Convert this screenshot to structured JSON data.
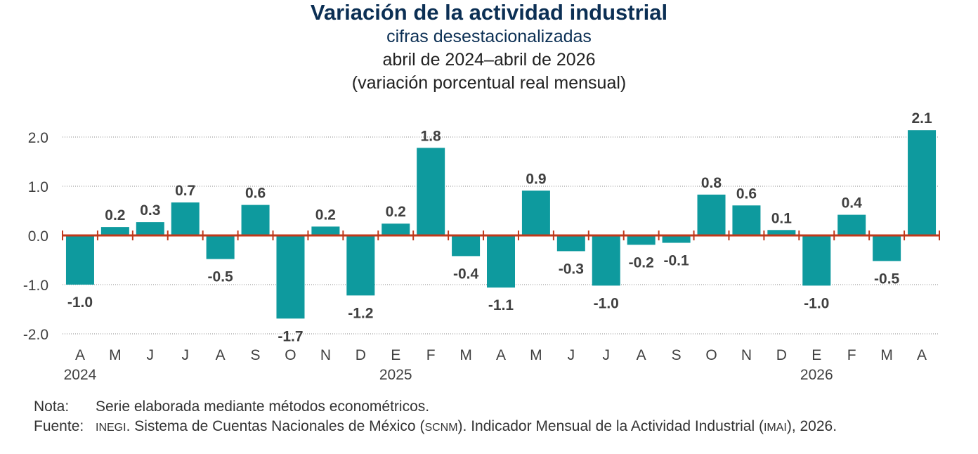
{
  "header": {
    "title": "Variación de la actividad industrial",
    "subtitle": "cifras desestacionalizadas",
    "period": "abril de 2024–abril de 2026",
    "units": "(variación porcentual real mensual)"
  },
  "colors": {
    "bar": "#0e9a9e",
    "zero_line": "#c0391b",
    "title": "#0b2f54",
    "grid": "#888888",
    "text": "#404040"
  },
  "chart_data": {
    "type": "bar",
    "title": "Variación de la actividad industrial",
    "subtitle": "cifras desestacionalizadas",
    "ylabel": "",
    "xlabel": "",
    "ylim": [
      -2.0,
      2.0
    ],
    "yticks": [
      "2.0",
      "1.0",
      "0.0",
      "-1.0",
      "-2.0"
    ],
    "ytick_values": [
      2.0,
      1.0,
      0.0,
      -1.0,
      -2.0
    ],
    "grid": "horizontal dotted",
    "categories": [
      "A",
      "M",
      "J",
      "J",
      "A",
      "S",
      "O",
      "N",
      "D",
      "E",
      "F",
      "M",
      "A",
      "M",
      "J",
      "J",
      "A",
      "S",
      "O",
      "N",
      "D",
      "E",
      "F",
      "M",
      "A"
    ],
    "values": [
      -1.0,
      0.17,
      0.27,
      0.67,
      -0.48,
      0.62,
      -1.69,
      0.18,
      -1.22,
      0.24,
      1.78,
      -0.42,
      -1.06,
      0.91,
      -0.32,
      -1.02,
      -0.19,
      -0.15,
      0.83,
      0.61,
      0.11,
      -1.02,
      0.42,
      -0.52,
      2.14
    ],
    "labels": [
      "-1.0",
      "0.2",
      "0.3",
      "0.7",
      "-0.5",
      "0.6",
      "-1.7",
      "0.2",
      "-1.2",
      "0.2",
      "1.8",
      "-0.4",
      "-1.1",
      "0.9",
      "-0.3",
      "-1.0",
      "-0.2",
      "-0.1",
      "0.8",
      "0.6",
      "0.1",
      "-1.0",
      "0.4",
      "-0.5",
      "2.1"
    ],
    "years": [
      {
        "label": "2024",
        "index": 0
      },
      {
        "label": "2025",
        "index": 9
      },
      {
        "label": "2026",
        "index": 21
      }
    ]
  },
  "footer": {
    "note_key": "Nota:",
    "note_text": "Serie elaborada mediante métodos econométricos.",
    "source_key": "Fuente:",
    "source_inegi": "INEGI",
    "source_text_1": ". Sistema de Cuentas Nacionales de México (",
    "source_scnm": "SCNM",
    "source_text_2": "). Indicador Mensual de la Actividad Industrial (",
    "source_imai": "IMAI",
    "source_text_3": "), 2026."
  }
}
